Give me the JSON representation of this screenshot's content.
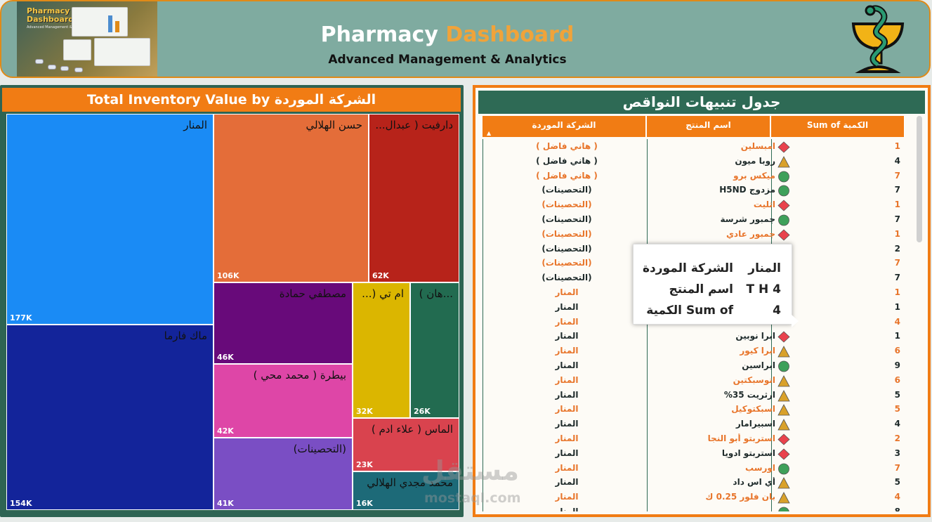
{
  "header": {
    "title_main": "Pharmacy",
    "title_accent": "Dashboard",
    "subtitle": "Advanced Management & Analytics",
    "banner_title_line1": "Pharmacy",
    "banner_title_line2": "Dashboard",
    "banner_subtitle": "Advanced Management & Analytics",
    "logo_icon": "bowl-of-hygieia-icon"
  },
  "left_panel": {
    "title": "Total Inventory Value by الشركة الموردة"
  },
  "chart_data": {
    "type": "treemap",
    "title": "Total Inventory Value by الشركة الموردة",
    "items": [
      {
        "label": "المنار",
        "value": "177K",
        "color": "#1a8bf5"
      },
      {
        "label": "ماك فارما",
        "value": "154K",
        "color": "#13249a"
      },
      {
        "label": "حسن الهلالي",
        "value": "106K",
        "color": "#e46d39"
      },
      {
        "label": "دارفيت ( عبدال...",
        "value": "62K",
        "color": "#b7231a"
      },
      {
        "label": "مصطفي حمادة",
        "value": "46K",
        "color": "#680a7a"
      },
      {
        "label": "بيطرة ( محمد محي )",
        "value": "42K",
        "color": "#de46a7"
      },
      {
        "label": "(التحصينات)",
        "value": "41K",
        "color": "#7a4ec4"
      },
      {
        "label": "ام تي (...",
        "value": "32K",
        "color": "#dbb600"
      },
      {
        "label": "...هان )",
        "value": "26K",
        "color": "#226b50"
      },
      {
        "label": "الماس ( علاء ادم )",
        "value": "23K",
        "color": "#d9434e"
      },
      {
        "label": "محمد مجدي الهلالي",
        "value": "16K",
        "color": "#1d6a78"
      }
    ]
  },
  "right_panel": {
    "title": "جدول تنبيهات النواقص",
    "columns": [
      "الشركة الموردة",
      "اسم المنتج",
      "Sum of الكمية"
    ],
    "rows": [
      {
        "supplier": "( هاني فاضل )",
        "product": "امبسلين",
        "shape": "diamond",
        "qty": "1",
        "orange": true
      },
      {
        "supplier": "( هاني فاضل )",
        "product": "روبا ميون",
        "shape": "triangle",
        "qty": "4",
        "orange": false
      },
      {
        "supplier": "( هاني فاضل )",
        "product": "ميكس برو",
        "shape": "circle",
        "qty": "7",
        "orange": true
      },
      {
        "supplier": "(التحصينات)",
        "product": "مزدوج H5ND",
        "shape": "circle",
        "qty": "7",
        "orange": false
      },
      {
        "supplier": "(التحصينات)",
        "product": "اثليت",
        "shape": "diamond",
        "qty": "1",
        "orange": true
      },
      {
        "supplier": "(التحصينات)",
        "product": "جمبور شرسة",
        "shape": "circle",
        "qty": "7",
        "orange": false
      },
      {
        "supplier": "(التحصينات)",
        "product": "جمبور عادي",
        "shape": "diamond",
        "qty": "1",
        "orange": true
      },
      {
        "supplier": "(التحصينات)",
        "product": "",
        "shape": "diamond",
        "qty": "2",
        "orange": false
      },
      {
        "supplier": "(التحصينات)",
        "product": "",
        "shape": "none",
        "qty": "7",
        "orange": true
      },
      {
        "supplier": "(التحصينات)",
        "product": "",
        "shape": "none",
        "qty": "7",
        "orange": false
      },
      {
        "supplier": "المنار",
        "product": "",
        "shape": "none",
        "qty": "1",
        "orange": true
      },
      {
        "supplier": "المنار",
        "product": "",
        "shape": "none",
        "qty": "1",
        "orange": false
      },
      {
        "supplier": "المنار",
        "product": "",
        "shape": "none",
        "qty": "4",
        "orange": true
      },
      {
        "supplier": "المنار",
        "product": "ابرا نوبين",
        "shape": "diamond",
        "qty": "1",
        "orange": false
      },
      {
        "supplier": "المنار",
        "product": "ابرا كيور",
        "shape": "triangle",
        "qty": "6",
        "orange": true
      },
      {
        "supplier": "المنار",
        "product": "ابراسين",
        "shape": "circle",
        "qty": "9",
        "orange": false
      },
      {
        "supplier": "المنار",
        "product": "اتوسبكتين",
        "shape": "triangle",
        "qty": "6",
        "orange": true
      },
      {
        "supplier": "المنار",
        "product": "ارثريت 35%",
        "shape": "triangle",
        "qty": "5",
        "orange": false
      },
      {
        "supplier": "المنار",
        "product": "اسبكتوكيل",
        "shape": "triangle",
        "qty": "5",
        "orange": true
      },
      {
        "supplier": "المنار",
        "product": "اسبيرامار",
        "shape": "triangle",
        "qty": "4",
        "orange": false
      },
      {
        "supplier": "المنار",
        "product": "استربتو أبو النجا",
        "shape": "diamond",
        "qty": "2",
        "orange": true
      },
      {
        "supplier": "المنار",
        "product": "استربتو ادويا",
        "shape": "diamond",
        "qty": "3",
        "orange": false
      },
      {
        "supplier": "المنار",
        "product": "اورسب",
        "shape": "circle",
        "qty": "7",
        "orange": true
      },
      {
        "supplier": "المنار",
        "product": "أي اس داد",
        "shape": "triangle",
        "qty": "5",
        "orange": false
      },
      {
        "supplier": "المنار",
        "product": "بان فلور 0.25 ك",
        "shape": "triangle",
        "qty": "4",
        "orange": true
      },
      {
        "supplier": "المنار",
        "product": "",
        "shape": "circle",
        "qty": "8",
        "orange": false
      }
    ],
    "colors": {
      "diamond": "#e9424d",
      "triangle": "#d9a12a",
      "circle": "#3ea05a"
    }
  },
  "tooltip": {
    "rows": [
      {
        "key": "الشركة الموردة",
        "value": "المنار"
      },
      {
        "key": "اسم المنتج",
        "value": "T H 4"
      },
      {
        "key": "Sum of الكمية",
        "value": "4"
      }
    ]
  },
  "watermark": {
    "arabic": "مستقل",
    "latin": "mostaql.com"
  }
}
